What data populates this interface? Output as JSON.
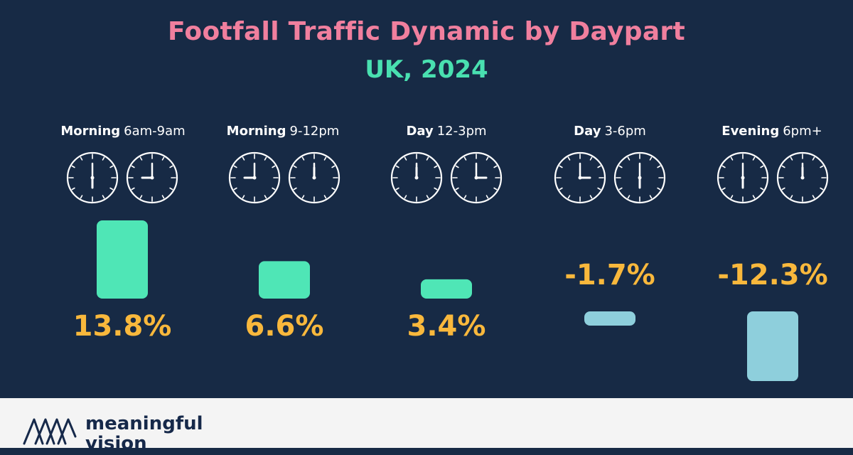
{
  "title": "Footfall Traffic Dynamic by Daypart",
  "subtitle": "UK, 2024",
  "colors": {
    "background": "#172a45",
    "title": "#f07f9e",
    "subtitle": "#49e0b0",
    "positive_bar": "#4fe6b6",
    "negative_bar": "#8ecfdc",
    "value_label": "#f9b83c",
    "footer": "#f4f4f4",
    "brand": "#16294a"
  },
  "chart_data": {
    "type": "bar",
    "categories": [
      "Morning 6am-9am",
      "Morning 9-12pm",
      "Day 12-3pm",
      "Day 3-6pm",
      "Evening 6pm+"
    ],
    "category_parts": [
      {
        "name": "Morning",
        "range": "6am-9am",
        "clocks": [
          {
            "h": 6,
            "m": 0
          },
          {
            "h": 9,
            "m": 0
          }
        ]
      },
      {
        "name": "Morning",
        "range": "9-12pm",
        "clocks": [
          {
            "h": 9,
            "m": 0
          },
          {
            "h": 12,
            "m": 0
          }
        ]
      },
      {
        "name": "Day",
        "range": "12-3pm",
        "clocks": [
          {
            "h": 12,
            "m": 0
          },
          {
            "h": 3,
            "m": 0
          }
        ]
      },
      {
        "name": "Day",
        "range": "3-6pm",
        "clocks": [
          {
            "h": 3,
            "m": 0
          },
          {
            "h": 6,
            "m": 0
          }
        ]
      },
      {
        "name": "Evening",
        "range": "6pm+",
        "clocks": [
          {
            "h": 6,
            "m": 0
          },
          {
            "h": 12,
            "m": 0
          }
        ]
      }
    ],
    "values": [
      13.8,
      6.6,
      3.4,
      -1.7,
      -12.3
    ],
    "value_labels": [
      "13.8%",
      "6.6%",
      "3.4%",
      "-1.7%",
      "-12.3%"
    ],
    "unit": "%"
  },
  "brand": {
    "line1": "meaningful",
    "line2": "vision"
  }
}
